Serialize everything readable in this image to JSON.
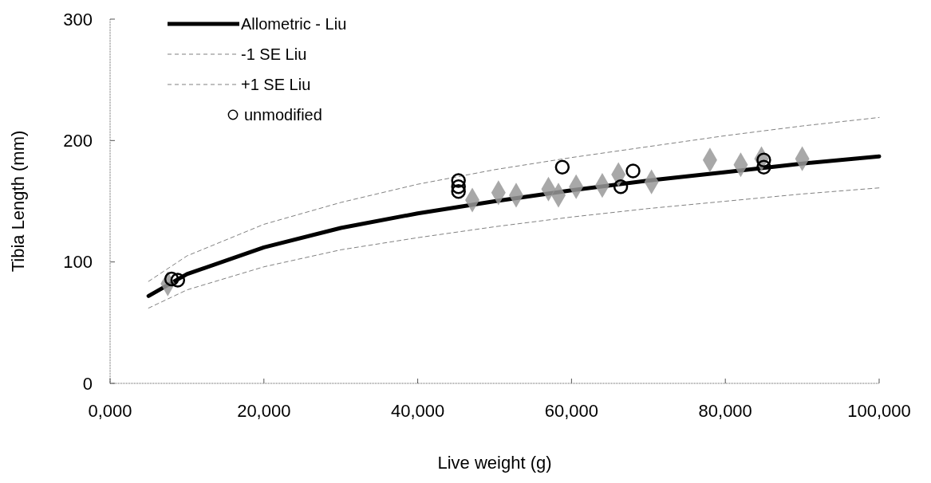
{
  "chart_data": {
    "type": "line",
    "xlabel": "Live weight (g)",
    "ylabel": "Tibia Length (mm)",
    "xlim": [
      0,
      100000
    ],
    "ylim": [
      0,
      300
    ],
    "xticks": [
      {
        "value": 0,
        "label": "0,000"
      },
      {
        "value": 20000,
        "label": "20,000"
      },
      {
        "value": 40000,
        "label": "40,000"
      },
      {
        "value": 60000,
        "label": "60,000"
      },
      {
        "value": 80000,
        "label": "80,000"
      },
      {
        "value": 100000,
        "label": "100,000"
      }
    ],
    "yticks": [
      0,
      100,
      200,
      300
    ],
    "grid": false,
    "legend": "top left",
    "series": [
      {
        "name": "Allometric - Liu",
        "color": "#000000",
        "line_style": "solid",
        "marker": "none",
        "x": [
          5000,
          10000,
          20000,
          30000,
          40000,
          50000,
          60000,
          70000,
          80000,
          90000,
          100000
        ],
        "values": [
          72,
          90,
          112,
          128,
          140,
          150,
          159,
          167,
          174,
          181,
          187
        ]
      },
      {
        "name": "-1 SE Liu",
        "color": "#808080",
        "line_style": "dashed",
        "marker": "none",
        "x": [
          5000,
          10000,
          20000,
          30000,
          40000,
          50000,
          60000,
          70000,
          80000,
          90000,
          100000
        ],
        "values": [
          62,
          77,
          96,
          110,
          120,
          129,
          137,
          144,
          150,
          156,
          161
        ]
      },
      {
        "name": "+1 SE Liu",
        "color": "#808080",
        "line_style": "dashed",
        "marker": "none",
        "x": [
          5000,
          10000,
          20000,
          30000,
          40000,
          50000,
          60000,
          70000,
          80000,
          90000,
          100000
        ],
        "values": [
          84,
          105,
          131,
          149,
          164,
          176,
          186,
          195,
          204,
          212,
          219
        ]
      },
      {
        "type": "scatter",
        "color": "#999999",
        "marker": "diamond",
        "x": [
          7500,
          47100,
          50500,
          52800,
          57000,
          58300,
          60600,
          64000,
          66100,
          70400,
          78000,
          82000,
          84700,
          90000
        ],
        "values": [
          82,
          151,
          157,
          155,
          160,
          155,
          162,
          163,
          172,
          166,
          184,
          180,
          185,
          185
        ]
      },
      {
        "name": "unmodified",
        "type": "scatter",
        "color": "#000000",
        "marker": "circle",
        "x": [
          8000,
          8800,
          45300,
          45300,
          45300,
          58800,
          66400,
          68000,
          85000,
          85000
        ],
        "values": [
          86,
          85,
          167,
          162,
          158,
          178,
          162,
          175,
          184,
          178
        ]
      }
    ]
  }
}
